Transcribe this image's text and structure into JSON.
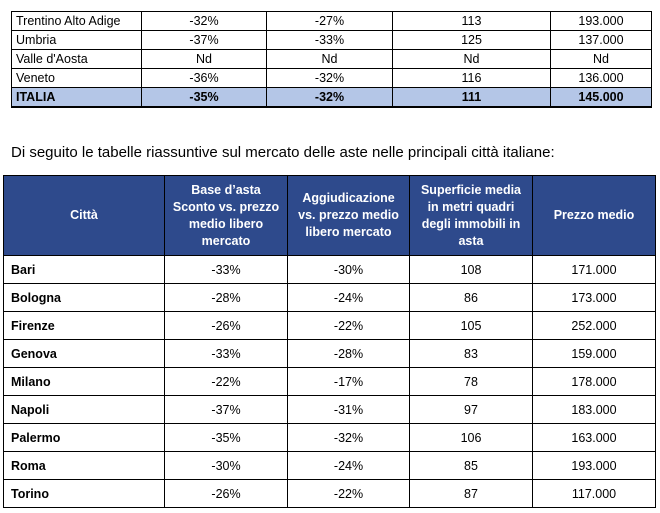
{
  "top_table": {
    "rows": [
      [
        "Trentino Alto Adige",
        "-32%",
        "-27%",
        "113",
        "193.000"
      ],
      [
        "Umbria",
        "-37%",
        "-33%",
        "125",
        "137.000"
      ],
      [
        "Valle d'Aosta",
        "Nd",
        "Nd",
        "Nd",
        "Nd"
      ],
      [
        "Veneto",
        "-36%",
        "-32%",
        "116",
        "136.000"
      ]
    ],
    "total": [
      "ITALIA",
      "-35%",
      "-32%",
      "111",
      "145.000"
    ],
    "total_highlight_color": "#b4c6e7"
  },
  "intro_text": "Di seguito le tabelle riassuntive sul mercato delle aste nelle principali città italiane:",
  "cities_table": {
    "header_color": "#2e4a8c",
    "headers": [
      "Città",
      "Base d’asta Sconto vs. prezzo medio libero mercato",
      "Aggiudicazione vs. prezzo medio libero mercato",
      "Superficie media in metri quadri degli immobili in asta",
      "Prezzo medio"
    ],
    "rows": [
      [
        "Bari",
        "-33%",
        "-30%",
        "108",
        "171.000"
      ],
      [
        "Bologna",
        "-28%",
        "-24%",
        "86",
        "173.000"
      ],
      [
        "Firenze",
        "-26%",
        "-22%",
        "105",
        "252.000"
      ],
      [
        "Genova",
        "-33%",
        "-28%",
        "83",
        "159.000"
      ],
      [
        "Milano",
        "-22%",
        "-17%",
        "78",
        "178.000"
      ],
      [
        "Napoli",
        "-37%",
        "-31%",
        "97",
        "183.000"
      ],
      [
        "Palermo",
        "-35%",
        "-32%",
        "106",
        "163.000"
      ],
      [
        "Roma",
        "-30%",
        "-24%",
        "85",
        "193.000"
      ],
      [
        "Torino",
        "-26%",
        "-22%",
        "87",
        "117.000"
      ]
    ]
  }
}
